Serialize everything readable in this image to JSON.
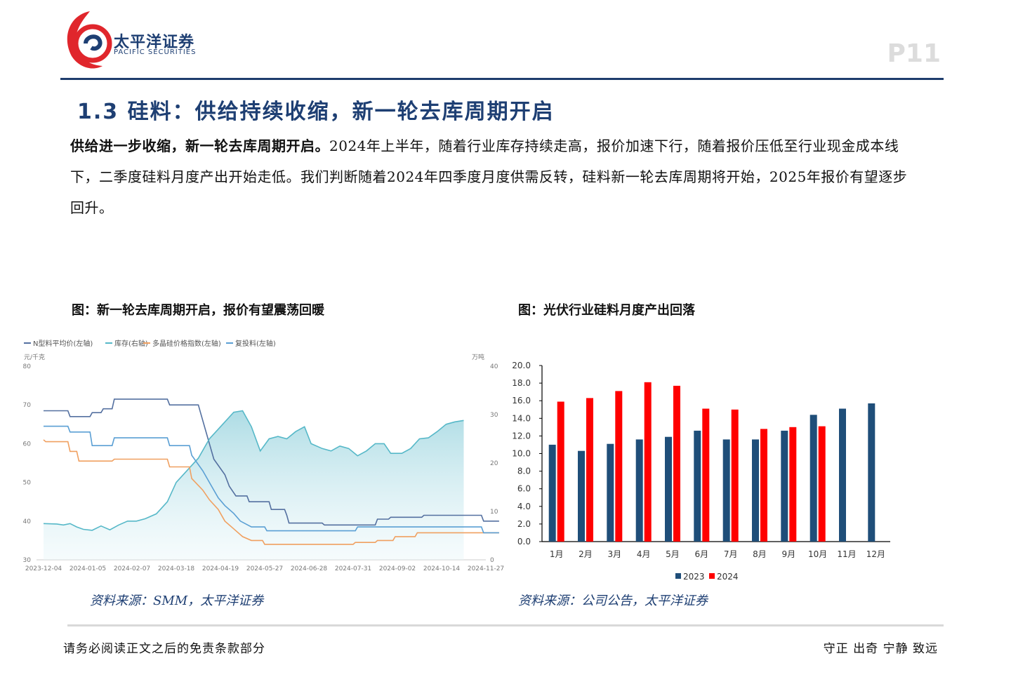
{
  "header": {
    "logo_cn": "太平洋证券",
    "logo_en": "PACIFIC SECURITIES",
    "page_number": "P11"
  },
  "section": {
    "title": "1.3 硅料：供给持续收缩，新一轮去库周期开启",
    "lead_bold": "供给进一步收缩，新一轮去库周期开启。",
    "body": "2024年上半年，随着行业库存持续走高，报价加速下行，随着报价压低至行业现金成本线下，二季度硅料月度产出开始走低。我们判断随着2024年四季度月度供需反转，硅料新一轮去库周期将开始，2025年报价有望逐步回升。"
  },
  "figure_left": {
    "title": "图：新一轮去库周期开启，报价有望震荡回暖",
    "source": "资料来源：SMM，太平洋证券"
  },
  "figure_right": {
    "title": "图：光伏行业硅料月度产出回落",
    "source": "资料来源：公司公告，太平洋证券"
  },
  "footer": {
    "disclaimer": "请务必阅读正文之后的免责条款部分",
    "motto": "守正 出奇 宁静 致远"
  },
  "colors": {
    "brand_navy": "#1f3d6d",
    "n_price": "#5470a0",
    "inventory": "#56b8c8",
    "polysilicon_index": "#f0a060",
    "recharge": "#5a9fd4",
    "bar_2023": "#1f4e79",
    "bar_2024": "#ff0000"
  },
  "chart_data": [
    {
      "type": "line",
      "legend": [
        "N型料平均价(左轴)",
        "库存(右轴)",
        "多晶硅价格指数(左轴)",
        "复投料(左轴)"
      ],
      "left_unit": "元/千克",
      "right_unit": "万吨",
      "ylim_left": [
        30,
        80
      ],
      "ylim_right": [
        0,
        40
      ],
      "yticks_left": [
        "80",
        "70",
        "60",
        "50",
        "40",
        "30"
      ],
      "yticks_right": [
        "40",
        "30",
        "20",
        "10",
        "0"
      ],
      "x_ticks": [
        "2023-12-04",
        "2024-01-05",
        "2024-02-07",
        "2024-03-18",
        "2024-04-19",
        "2024-05-27",
        "2024-06-28",
        "2024-07-31",
        "2024-09-02",
        "2024-10-14",
        "2024-11-27"
      ],
      "series": [
        {
          "name": "N型料平均价(左轴)",
          "axis": "left",
          "points": [
            [
              0,
              68.5
            ],
            [
              0.55,
              68.5
            ],
            [
              0.6,
              67
            ],
            [
              1.05,
              67
            ],
            [
              1.1,
              68
            ],
            [
              1.3,
              68
            ],
            [
              1.35,
              69
            ],
            [
              1.55,
              69
            ],
            [
              1.6,
              71.5
            ],
            [
              2.8,
              71.5
            ],
            [
              2.85,
              70
            ],
            [
              3.5,
              70
            ],
            [
              3.55,
              68
            ],
            [
              3.7,
              62
            ],
            [
              3.85,
              56
            ],
            [
              4.1,
              52
            ],
            [
              4.2,
              49
            ],
            [
              4.35,
              46.5
            ],
            [
              4.6,
              46.5
            ],
            [
              4.65,
              45
            ],
            [
              5.1,
              45
            ],
            [
              5.15,
              43
            ],
            [
              5.45,
              43
            ],
            [
              5.5,
              41.5
            ],
            [
              5.55,
              39.5
            ],
            [
              6.3,
              39.5
            ],
            [
              6.35,
              39
            ],
            [
              7.5,
              39
            ],
            [
              7.55,
              40.5
            ],
            [
              7.8,
              40.5
            ],
            [
              7.85,
              41
            ],
            [
              8.55,
              41
            ],
            [
              8.6,
              41.5
            ],
            [
              9.9,
              41.5
            ],
            [
              9.95,
              40
            ],
            [
              10.3,
              40
            ]
          ]
        },
        {
          "name": "库存(右轴)",
          "axis": "right",
          "points": [
            [
              0,
              7.5
            ],
            [
              0.3,
              7.4
            ],
            [
              0.45,
              7.2
            ],
            [
              0.6,
              7.5
            ],
            [
              0.75,
              6.8
            ],
            [
              0.9,
              6.3
            ],
            [
              1.1,
              6.1
            ],
            [
              1.3,
              7
            ],
            [
              1.5,
              6.2
            ],
            [
              1.7,
              7.2
            ],
            [
              1.9,
              8
            ],
            [
              2.1,
              8
            ],
            [
              2.3,
              8.5
            ],
            [
              2.55,
              9.5
            ],
            [
              2.8,
              12
            ],
            [
              3.0,
              16
            ],
            [
              3.2,
              18
            ],
            [
              3.5,
              21
            ],
            [
              3.75,
              25
            ],
            [
              4.0,
              27.5
            ],
            [
              4.3,
              30.5
            ],
            [
              4.5,
              30.8
            ],
            [
              4.7,
              27.5
            ],
            [
              4.9,
              22.5
            ],
            [
              5.1,
              25
            ],
            [
              5.3,
              25.5
            ],
            [
              5.5,
              25
            ],
            [
              5.7,
              26.5
            ],
            [
              5.9,
              27.5
            ],
            [
              6.05,
              24
            ],
            [
              6.3,
              23
            ],
            [
              6.5,
              22.5
            ],
            [
              6.7,
              23.5
            ],
            [
              6.9,
              23
            ],
            [
              7.1,
              21.5
            ],
            [
              7.3,
              22.5
            ],
            [
              7.5,
              24
            ],
            [
              7.7,
              24
            ],
            [
              7.85,
              22
            ],
            [
              8.1,
              22
            ],
            [
              8.3,
              23
            ],
            [
              8.5,
              25
            ],
            [
              8.7,
              25.2
            ],
            [
              8.9,
              26.5
            ],
            [
              9.1,
              28
            ],
            [
              9.3,
              28.5
            ],
            [
              9.5,
              28.8
            ]
          ]
        },
        {
          "name": "多晶硅价格指数(左轴)",
          "axis": "left",
          "points": [
            [
              0,
              61
            ],
            [
              0.05,
              60.5
            ],
            [
              0.55,
              60.5
            ],
            [
              0.6,
              58
            ],
            [
              0.75,
              58
            ],
            [
              0.8,
              55.5
            ],
            [
              1.55,
              55.5
            ],
            [
              1.6,
              56
            ],
            [
              2.8,
              56
            ],
            [
              2.85,
              54
            ],
            [
              3.3,
              54
            ],
            [
              3.35,
              51
            ],
            [
              3.6,
              48
            ],
            [
              3.75,
              45.5
            ],
            [
              3.95,
              43
            ],
            [
              4.1,
              40
            ],
            [
              4.3,
              38
            ],
            [
              4.5,
              36
            ],
            [
              4.7,
              35
            ],
            [
              4.95,
              35
            ],
            [
              5.0,
              34
            ],
            [
              6.3,
              34
            ],
            [
              6.35,
              34
            ],
            [
              7.0,
              34
            ],
            [
              7.05,
              34.5
            ],
            [
              7.5,
              34.5
            ],
            [
              7.55,
              35
            ],
            [
              7.9,
              35
            ],
            [
              7.95,
              36
            ],
            [
              8.4,
              36
            ],
            [
              8.45,
              37
            ],
            [
              9.9,
              37
            ],
            [
              9.95,
              37
            ],
            [
              10.3,
              37
            ]
          ]
        },
        {
          "name": "复投料(左轴)",
          "axis": "left",
          "points": [
            [
              0,
              64.5
            ],
            [
              0.55,
              64.5
            ],
            [
              0.6,
              63
            ],
            [
              1.05,
              63
            ],
            [
              1.1,
              59.5
            ],
            [
              1.55,
              59.5
            ],
            [
              1.6,
              61.5
            ],
            [
              2.8,
              61.5
            ],
            [
              2.85,
              59.5
            ],
            [
              3.3,
              59.5
            ],
            [
              3.35,
              57
            ],
            [
              3.6,
              53
            ],
            [
              3.8,
              49
            ],
            [
              3.95,
              46
            ],
            [
              4.1,
              44
            ],
            [
              4.3,
              42
            ],
            [
              4.45,
              40
            ],
            [
              4.7,
              38.5
            ],
            [
              5.0,
              38.5
            ],
            [
              5.05,
              37.5
            ],
            [
              6.3,
              37.5
            ],
            [
              7.05,
              37.5
            ],
            [
              7.1,
              38.5
            ],
            [
              9.9,
              38.5
            ],
            [
              9.95,
              37
            ],
            [
              10.3,
              37
            ]
          ]
        }
      ],
      "x_point_units": "x tick index (0 = 2023-12-04, 10 = 2024-11-27)"
    },
    {
      "type": "bar",
      "categories": [
        "1月",
        "2月",
        "3月",
        "4月",
        "5月",
        "6月",
        "7月",
        "8月",
        "9月",
        "10月",
        "11月",
        "12月"
      ],
      "series": [
        {
          "name": "2023",
          "values": [
            11.0,
            10.3,
            11.1,
            11.6,
            11.9,
            12.6,
            11.6,
            11.6,
            12.6,
            14.4,
            15.1,
            15.7
          ]
        },
        {
          "name": "2024",
          "values": [
            15.9,
            16.3,
            17.1,
            18.1,
            17.7,
            15.1,
            15.0,
            12.8,
            13.0,
            13.1,
            null,
            null
          ]
        }
      ],
      "ylim": [
        0,
        20
      ],
      "yticks": [
        "20.0",
        "18.0",
        "16.0",
        "14.0",
        "12.0",
        "10.0",
        "8.0",
        "6.0",
        "4.0",
        "2.0",
        "0.0"
      ],
      "legend_position": "bottom"
    }
  ]
}
